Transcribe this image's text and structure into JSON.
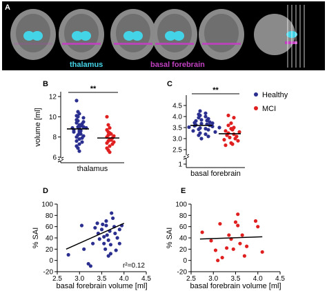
{
  "figure": {
    "panel_letters": [
      "A",
      "B",
      "C",
      "D",
      "E"
    ]
  },
  "panel_a": {
    "labels": {
      "thalamus": "thalamus",
      "basal_forebrain": "basal forebrain"
    },
    "colors": {
      "thalamus": "#44d4e8",
      "basal_forebrain": "#c040c0",
      "background": "#000000",
      "brain": "#8a8a8a"
    }
  },
  "colors": {
    "healthy": "#2b2f8f",
    "mci": "#e02020",
    "fit_line": "#000000"
  },
  "legend": {
    "healthy": "Healthy",
    "mci": "MCI"
  },
  "chart_data": [
    {
      "id": "B",
      "type": "scatter",
      "ylabel": "volume [ml]",
      "xlabel": "thalamus",
      "yticks": [
        6,
        8,
        10,
        12
      ],
      "ylim": [
        5.6,
        12.4
      ],
      "axis_break": true,
      "significance": "**",
      "series": [
        {
          "name": "Healthy",
          "group": 0,
          "median": 8.8,
          "values": [
            11.6,
            10.5,
            10.3,
            10.1,
            10.0,
            9.9,
            9.7,
            9.6,
            9.5,
            9.4,
            9.3,
            9.2,
            9.1,
            9.0,
            9.0,
            8.9,
            8.9,
            8.8,
            8.7,
            8.7,
            8.6,
            8.6,
            8.5,
            8.4,
            8.3,
            8.2,
            8.1,
            8.0,
            7.9,
            7.8,
            7.6,
            7.5,
            7.3,
            7.1,
            6.9,
            6.6
          ]
        },
        {
          "name": "MCI",
          "group": 1,
          "median": 7.9,
          "values": [
            10.0,
            9.2,
            8.9,
            8.7,
            8.5,
            8.4,
            8.3,
            8.2,
            8.1,
            8.0,
            7.9,
            7.8,
            7.7,
            7.6,
            7.5,
            7.4,
            7.3,
            7.1,
            6.9,
            6.7,
            6.5
          ]
        }
      ]
    },
    {
      "id": "C",
      "type": "scatter",
      "xlabel": "basal forebrain",
      "yticks": [
        "1",
        "2.5",
        "3.0",
        "3.5",
        "4.0",
        "4.5"
      ],
      "yticks_numeric": [
        1,
        2.5,
        3.0,
        3.5,
        4.0,
        4.5
      ],
      "axis_break": true,
      "significance": "**",
      "series": [
        {
          "name": "Healthy",
          "group": 0,
          "median": 3.6,
          "values": [
            4.25,
            4.15,
            4.1,
            4.05,
            4.0,
            3.95,
            3.9,
            3.85,
            3.82,
            3.8,
            3.75,
            3.72,
            3.7,
            3.68,
            3.65,
            3.62,
            3.6,
            3.58,
            3.55,
            3.52,
            3.5,
            3.48,
            3.45,
            3.42,
            3.4,
            3.35,
            3.3,
            3.25,
            3.2,
            3.15,
            3.1,
            3.0
          ]
        },
        {
          "name": "MCI",
          "group": 1,
          "median": 3.22,
          "values": [
            4.05,
            3.95,
            3.7,
            3.6,
            3.5,
            3.45,
            3.4,
            3.35,
            3.3,
            3.25,
            3.2,
            3.15,
            3.1,
            3.05,
            3.0,
            2.95,
            2.9,
            2.8,
            2.75,
            2.7
          ]
        }
      ]
    },
    {
      "id": "D",
      "type": "scatter",
      "xlabel": "basal forebrain volume [ml]",
      "ylabel": "% SAI",
      "xticks": [
        2.5,
        3.0,
        3.5,
        4.0,
        4.5
      ],
      "yticks": [
        -20,
        0,
        20,
        40,
        60,
        80,
        100
      ],
      "xlim": [
        2.5,
        4.5
      ],
      "ylim": [
        -20,
        100
      ],
      "annotation": "r²=0.12",
      "fit": {
        "x": [
          2.7,
          4.0
        ],
        "y": [
          20,
          66
        ]
      },
      "series": [
        {
          "name": "Healthy",
          "points": [
            [
              2.75,
              10
            ],
            [
              3.05,
              62
            ],
            [
              3.1,
              20
            ],
            [
              3.2,
              -6
            ],
            [
              3.25,
              -10
            ],
            [
              3.3,
              30
            ],
            [
              3.35,
              58
            ],
            [
              3.4,
              66
            ],
            [
              3.42,
              48
            ],
            [
              3.45,
              38
            ],
            [
              3.5,
              55
            ],
            [
              3.52,
              64
            ],
            [
              3.55,
              42
            ],
            [
              3.55,
              30
            ],
            [
              3.58,
              20
            ],
            [
              3.6,
              62
            ],
            [
              3.6,
              70
            ],
            [
              3.62,
              45
            ],
            [
              3.65,
              36
            ],
            [
              3.68,
              52
            ],
            [
              3.7,
              28
            ],
            [
              3.7,
              12
            ],
            [
              3.72,
              84
            ],
            [
              3.75,
              75
            ],
            [
              3.78,
              60
            ],
            [
              3.8,
              48
            ],
            [
              3.82,
              18
            ],
            [
              3.85,
              40
            ],
            [
              3.9,
              30
            ],
            [
              3.9,
              55
            ],
            [
              3.95,
              62
            ],
            [
              3.65,
              8
            ]
          ]
        }
      ]
    },
    {
      "id": "E",
      "type": "scatter",
      "xlabel": "basal forebrain volume [ml]",
      "ylabel": "% SAI",
      "xticks": [
        2.5,
        3.0,
        3.5,
        4.0,
        4.5
      ],
      "yticks": [
        -20,
        0,
        20,
        40,
        60,
        80,
        100
      ],
      "xlim": [
        2.5,
        4.5
      ],
      "ylim": [
        -20,
        100
      ],
      "fit": {
        "x": [
          2.7,
          4.1
        ],
        "y": [
          38,
          42
        ]
      },
      "series": [
        {
          "name": "MCI",
          "points": [
            [
              2.75,
              50
            ],
            [
              2.95,
              35
            ],
            [
              3.05,
              18
            ],
            [
              3.1,
              0
            ],
            [
              3.15,
              65
            ],
            [
              3.2,
              5
            ],
            [
              3.3,
              22
            ],
            [
              3.35,
              45
            ],
            [
              3.4,
              38
            ],
            [
              3.45,
              20
            ],
            [
              3.5,
              68
            ],
            [
              3.55,
              62
            ],
            [
              3.55,
              82
            ],
            [
              3.6,
              30
            ],
            [
              3.65,
              45
            ],
            [
              3.7,
              8
            ],
            [
              3.75,
              25
            ],
            [
              3.95,
              70
            ],
            [
              4.0,
              60
            ],
            [
              4.1,
              15
            ]
          ]
        }
      ]
    }
  ]
}
